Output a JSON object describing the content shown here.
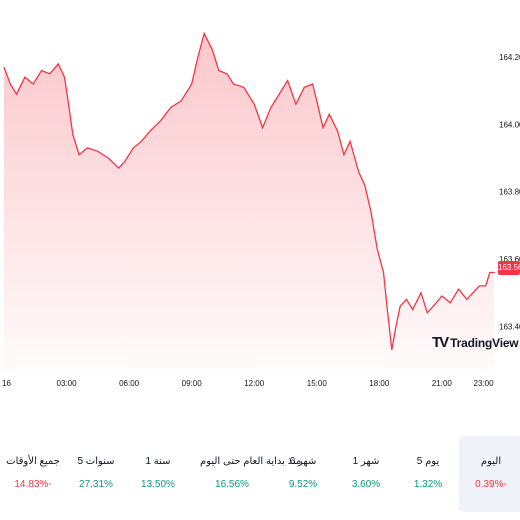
{
  "chart_data": {
    "type": "area",
    "y_ticks": [
      "164.200",
      "164.000",
      "163.800",
      "163.600",
      "163.400"
    ],
    "y_tick_values": [
      164.2,
      164.0,
      163.8,
      163.6,
      163.4
    ],
    "ylim": [
      163.3,
      164.31
    ],
    "x_ticks": [
      "16",
      "03:00",
      "06:00",
      "09:00",
      "12:00",
      "15:00",
      "18:00",
      "21:00",
      "23:00"
    ],
    "x_tick_hours": [
      0,
      3,
      6,
      9,
      12,
      15,
      18,
      21,
      23
    ],
    "xlim": [
      0,
      23.5
    ],
    "series": [
      {
        "hours": [
          0,
          0.3,
          0.6,
          1.0,
          1.4,
          1.8,
          2.2,
          2.6,
          2.9,
          3.1,
          3.3,
          3.6,
          4.0,
          4.5,
          5.0,
          5.5,
          5.8,
          6.2,
          6.6,
          7.0,
          7.5,
          8.0,
          8.5,
          9.0,
          9.3,
          9.6,
          10.0,
          10.3,
          10.7,
          11.0,
          11.5,
          12.0,
          12.4,
          12.8,
          13.2,
          13.6,
          14.0,
          14.4,
          14.8,
          15.0,
          15.3,
          15.6,
          16.0,
          16.3,
          16.6,
          17.0,
          17.3,
          17.6,
          17.9,
          18.2,
          18.4,
          18.6,
          18.8,
          19.0,
          19.3,
          19.6,
          20.0,
          20.3,
          20.6,
          21.0,
          21.4,
          21.8,
          22.2,
          22.5,
          22.8,
          23.1,
          23.3,
          23.5
        ],
        "values": [
          164.17,
          164.12,
          164.09,
          164.14,
          164.12,
          164.16,
          164.15,
          164.18,
          164.14,
          164.06,
          163.97,
          163.91,
          163.93,
          163.92,
          163.9,
          163.87,
          163.89,
          163.93,
          163.95,
          163.98,
          164.01,
          164.05,
          164.07,
          164.12,
          164.2,
          164.27,
          164.22,
          164.16,
          164.15,
          164.12,
          164.11,
          164.06,
          163.99,
          164.05,
          164.09,
          164.13,
          164.06,
          164.11,
          164.12,
          164.07,
          163.99,
          164.03,
          163.98,
          163.91,
          163.95,
          163.86,
          163.82,
          163.74,
          163.63,
          163.56,
          163.44,
          163.33,
          163.4,
          163.46,
          163.48,
          163.45,
          163.5,
          163.44,
          163.46,
          163.49,
          163.47,
          163.51,
          163.48,
          163.5,
          163.52,
          163.52,
          163.56,
          163.56
        ]
      }
    ],
    "last_price": "163.562",
    "line_color": "#f23645"
  },
  "watermark": {
    "text": "TradingView",
    "logo": "TV"
  },
  "periods": [
    {
      "label": "اليوم",
      "value": "0.39%-",
      "trend": "down",
      "active": true
    },
    {
      "label": "5 يوم",
      "value": "1.32%",
      "trend": "up",
      "active": false
    },
    {
      "label": "1 شهر",
      "value": "3.60%",
      "trend": "up",
      "active": false
    },
    {
      "label": "6 شهر",
      "value": "9.52%",
      "trend": "up",
      "active": false
    },
    {
      "label": "منذ بداية العام حتى اليوم",
      "value": "16.56%",
      "trend": "up",
      "active": false
    },
    {
      "label": "1 سنة",
      "value": "13.50%",
      "trend": "up",
      "active": false
    },
    {
      "label": "5 سنوات",
      "value": "27.31%",
      "trend": "up",
      "active": false
    },
    {
      "label": "جميع الأوقات",
      "value": "14.83%-",
      "trend": "down",
      "active": false
    }
  ]
}
